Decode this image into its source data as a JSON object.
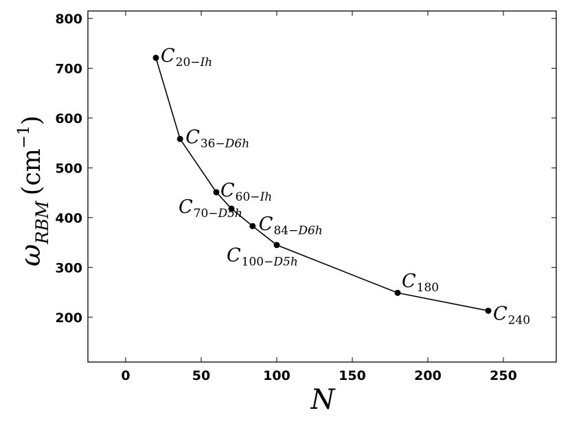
{
  "chart_data": {
    "type": "line",
    "title": "",
    "xlabel": "N",
    "ylabel": {
      "symbol": "ω",
      "subscript": "RBM",
      "unit_open": "(",
      "unit": "cm",
      "unit_exp": "−1",
      "unit_close": ")"
    },
    "xlim": [
      -25,
      285
    ],
    "ylim": [
      110,
      815
    ],
    "xticks": [
      "0",
      "50",
      "100",
      "150",
      "200",
      "250"
    ],
    "yticks": [
      "200",
      "300",
      "400",
      "500",
      "600",
      "700",
      "800"
    ],
    "grid": false,
    "series": [
      {
        "points": [
          {
            "x": 20,
            "y": 721,
            "label": {
              "main": "C",
              "sub": "20−",
              "sub_it": "Ih"
            }
          },
          {
            "x": 36,
            "y": 558,
            "label": {
              "main": "C",
              "sub": "36−",
              "sub_it": "D6h"
            }
          },
          {
            "x": 60,
            "y": 451,
            "label": {
              "main": "C",
              "sub": "60−",
              "sub_it": "Ih"
            }
          },
          {
            "x": 70,
            "y": 418,
            "label": {
              "main": "C",
              "sub": "70−",
              "sub_it": "D5h"
            }
          },
          {
            "x": 84,
            "y": 383,
            "label": {
              "main": "C",
              "sub": "84−",
              "sub_it": "D6h"
            }
          },
          {
            "x": 100,
            "y": 345,
            "label": {
              "main": "C",
              "sub": "100−",
              "sub_it": "D5h"
            }
          },
          {
            "x": 180,
            "y": 249,
            "label": {
              "main": "C",
              "sub": "180",
              "sub_it": ""
            }
          },
          {
            "x": 240,
            "y": 213,
            "label": {
              "main": "C",
              "sub": "240",
              "sub_it": ""
            }
          }
        ]
      }
    ]
  }
}
